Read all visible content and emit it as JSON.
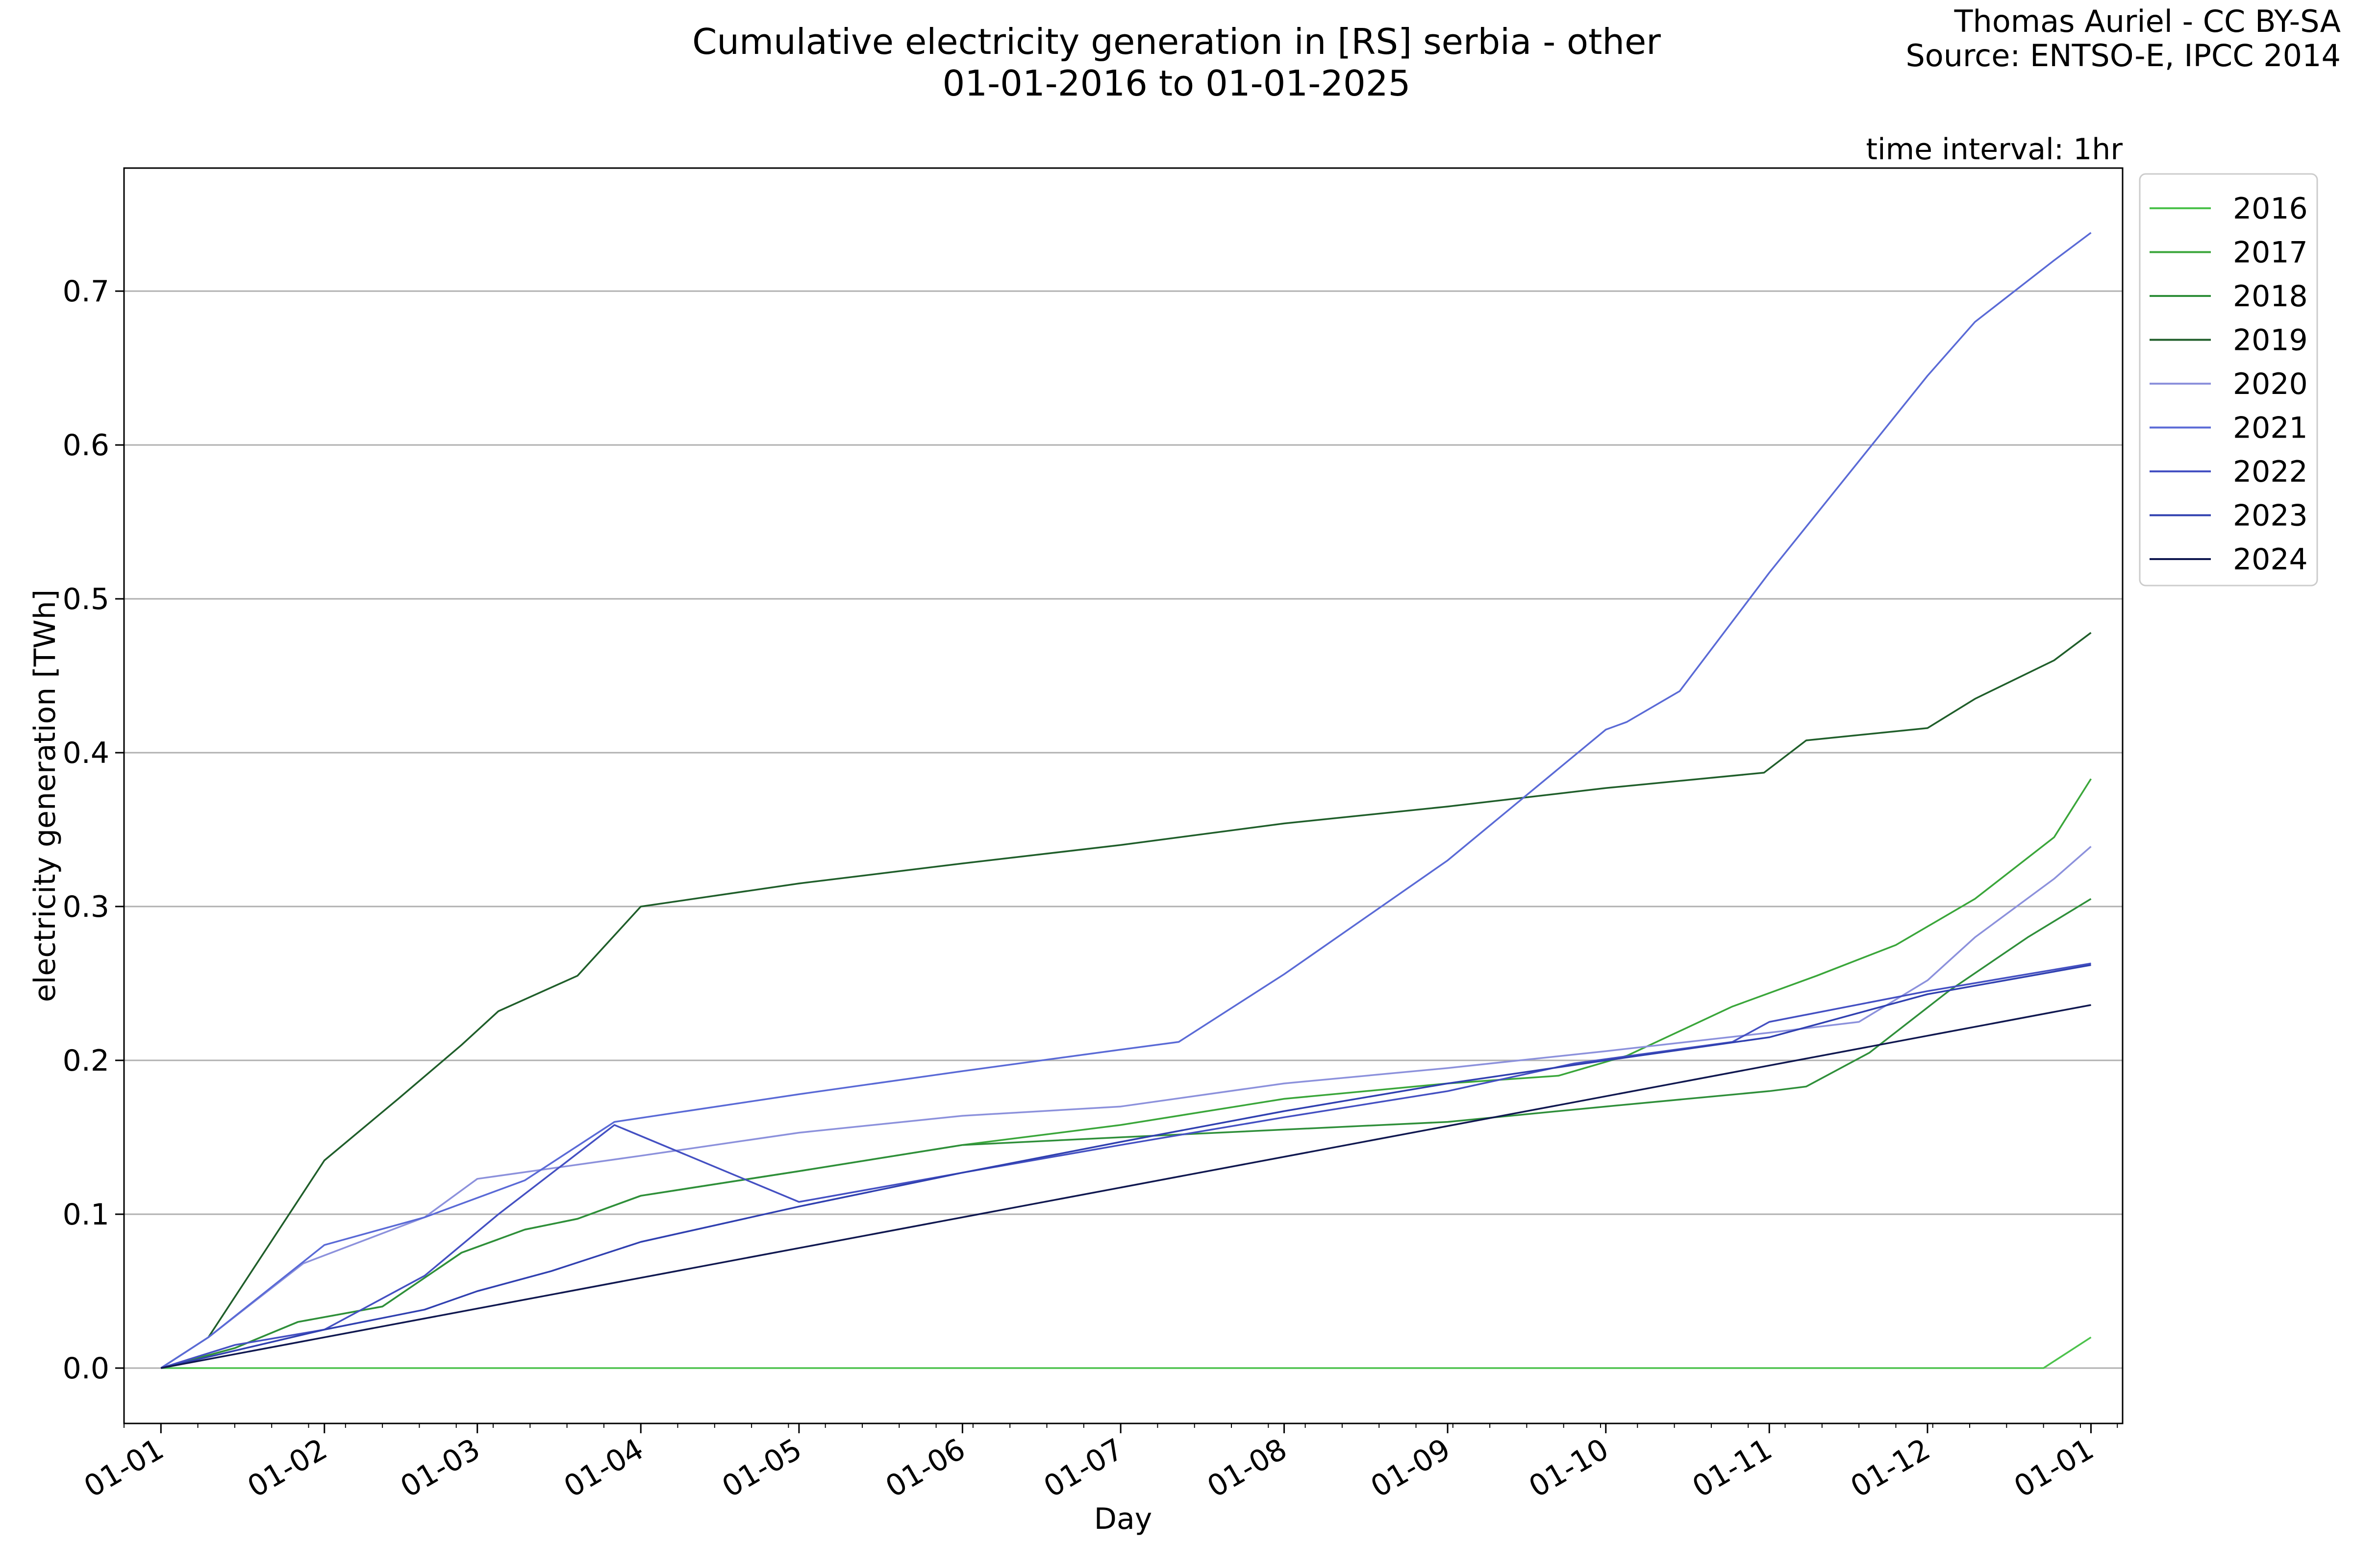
{
  "chart_data": {
    "type": "line",
    "title": "Cumulative electricity generation in [RS] serbia - other",
    "subtitle": "01-01-2016 to 01-01-2025",
    "credit": "Thomas Auriel - CC BY-SA",
    "source": "Source: ENTSO-E, IPCC 2014",
    "note": "time interval: 1hr",
    "xlabel": "Day",
    "ylabel": "electricity generation [TWh]",
    "xlim": [
      "12-25",
      "01-07"
    ],
    "ylim": [
      -0.036,
      0.78
    ],
    "x_ticks": [
      "01-01",
      "01-02",
      "01-03",
      "01-04",
      "01-05",
      "01-06",
      "01-07",
      "01-08",
      "01-09",
      "01-10",
      "01-11",
      "01-12",
      "01-01"
    ],
    "y_ticks": [
      "0.0",
      "0.1",
      "0.2",
      "0.3",
      "0.4",
      "0.5",
      "0.6",
      "0.7"
    ],
    "grid": "horizontal",
    "legend_position": "outside-top-right",
    "series": [
      {
        "name": "2016",
        "color": "#4cc24c",
        "points": [
          [
            "01-01",
            0
          ],
          [
            "12-23",
            0
          ],
          [
            "01-01",
            0.02
          ]
        ]
      },
      {
        "name": "2017",
        "color": "#3aa63a",
        "points": [
          [
            "01-01",
            0
          ],
          [
            "01-15",
            0.013
          ],
          [
            "01-27",
            0.03
          ],
          [
            "02-12",
            0.04
          ],
          [
            "02-27",
            0.075
          ],
          [
            "03-10",
            0.09
          ],
          [
            "03-20",
            0.097
          ],
          [
            "04-01",
            0.112
          ],
          [
            "05-01",
            0.128
          ],
          [
            "06-01",
            0.145
          ],
          [
            "07-01",
            0.158
          ],
          [
            "08-01",
            0.175
          ],
          [
            "09-01",
            0.185
          ],
          [
            "09-22",
            0.19
          ],
          [
            "10-05",
            0.203
          ],
          [
            "10-25",
            0.235
          ],
          [
            "11-10",
            0.255
          ],
          [
            "11-25",
            0.275
          ],
          [
            "12-10",
            0.305
          ],
          [
            "12-25",
            0.345
          ],
          [
            "01-01",
            0.383
          ]
        ]
      },
      {
        "name": "2018",
        "color": "#2f8f3a",
        "points": [
          [
            "01-01",
            0
          ],
          [
            "01-15",
            0.013
          ],
          [
            "01-27",
            0.03
          ],
          [
            "02-12",
            0.04
          ],
          [
            "02-27",
            0.075
          ],
          [
            "03-10",
            0.09
          ],
          [
            "03-20",
            0.097
          ],
          [
            "04-01",
            0.112
          ],
          [
            "05-01",
            0.128
          ],
          [
            "06-01",
            0.145
          ],
          [
            "07-01",
            0.15
          ],
          [
            "08-01",
            0.155
          ],
          [
            "09-01",
            0.16
          ],
          [
            "10-01",
            0.17
          ],
          [
            "11-01",
            0.18
          ],
          [
            "11-08",
            0.183
          ],
          [
            "11-20",
            0.205
          ],
          [
            "12-05",
            0.245
          ],
          [
            "12-20",
            0.28
          ],
          [
            "01-01",
            0.305
          ]
        ]
      },
      {
        "name": "2019",
        "color": "#1f5e2a",
        "points": [
          [
            "01-01",
            0
          ],
          [
            "01-10",
            0.02
          ],
          [
            "02-01",
            0.135
          ],
          [
            "02-15",
            0.175
          ],
          [
            "02-27",
            0.21
          ],
          [
            "03-05",
            0.232
          ],
          [
            "03-20",
            0.255
          ],
          [
            "04-01",
            0.3
          ],
          [
            "05-01",
            0.315
          ],
          [
            "06-01",
            0.328
          ],
          [
            "07-01",
            0.34
          ],
          [
            "08-01",
            0.354
          ],
          [
            "09-01",
            0.365
          ],
          [
            "10-01",
            0.377
          ],
          [
            "10-31",
            0.387
          ],
          [
            "11-08",
            0.408
          ],
          [
            "12-01",
            0.416
          ],
          [
            "12-10",
            0.435
          ],
          [
            "12-25",
            0.46
          ],
          [
            "01-01",
            0.478
          ]
        ]
      },
      {
        "name": "2020",
        "color": "#8c91dc",
        "points": [
          [
            "01-01",
            0
          ],
          [
            "01-10",
            0.02
          ],
          [
            "01-28",
            0.068
          ],
          [
            "02-20",
            0.098
          ],
          [
            "03-01",
            0.123
          ],
          [
            "04-01",
            0.138
          ],
          [
            "05-01",
            0.153
          ],
          [
            "06-01",
            0.164
          ],
          [
            "07-01",
            0.17
          ],
          [
            "08-01",
            0.185
          ],
          [
            "09-01",
            0.195
          ],
          [
            "10-01",
            0.206
          ],
          [
            "11-01",
            0.218
          ],
          [
            "11-18",
            0.225
          ],
          [
            "12-01",
            0.252
          ],
          [
            "12-10",
            0.28
          ],
          [
            "12-25",
            0.318
          ],
          [
            "01-01",
            0.339
          ]
        ]
      },
      {
        "name": "2021",
        "color": "#5a6ad6",
        "points": [
          [
            "01-01",
            0
          ],
          [
            "01-10",
            0.02
          ],
          [
            "02-01",
            0.08
          ],
          [
            "02-20",
            0.098
          ],
          [
            "03-10",
            0.122
          ],
          [
            "03-27",
            0.16
          ],
          [
            "05-01",
            0.178
          ],
          [
            "06-01",
            0.193
          ],
          [
            "07-01",
            0.207
          ],
          [
            "07-12",
            0.212
          ],
          [
            "08-01",
            0.256
          ],
          [
            "09-01",
            0.33
          ],
          [
            "10-01",
            0.415
          ],
          [
            "10-05",
            0.42
          ],
          [
            "10-15",
            0.44
          ],
          [
            "11-01",
            0.517
          ],
          [
            "12-01",
            0.645
          ],
          [
            "12-10",
            0.68
          ],
          [
            "12-25",
            0.72
          ],
          [
            "01-01",
            0.738
          ]
        ]
      },
      {
        "name": "2022",
        "color": "#4450c2",
        "points": [
          [
            "01-01",
            0
          ],
          [
            "01-15",
            0.015
          ],
          [
            "02-01",
            0.025
          ],
          [
            "02-20",
            0.06
          ],
          [
            "03-05",
            0.1
          ],
          [
            "03-27",
            0.158
          ],
          [
            "05-01",
            0.108
          ],
          [
            "06-01",
            0.127
          ],
          [
            "07-01",
            0.145
          ],
          [
            "08-01",
            0.163
          ],
          [
            "09-01",
            0.18
          ],
          [
            "09-25",
            0.198
          ],
          [
            "10-25",
            0.212
          ],
          [
            "11-01",
            0.225
          ],
          [
            "12-01",
            0.245
          ],
          [
            "01-01",
            0.263
          ]
        ]
      },
      {
        "name": "2023",
        "color": "#3040b0",
        "points": [
          [
            "01-01",
            0
          ],
          [
            "02-01",
            0.025
          ],
          [
            "02-20",
            0.038
          ],
          [
            "03-01",
            0.05
          ],
          [
            "03-15",
            0.063
          ],
          [
            "04-01",
            0.082
          ],
          [
            "05-01",
            0.105
          ],
          [
            "06-01",
            0.127
          ],
          [
            "07-01",
            0.147
          ],
          [
            "08-01",
            0.167
          ],
          [
            "09-01",
            0.185
          ],
          [
            "10-01",
            0.2
          ],
          [
            "11-01",
            0.215
          ],
          [
            "12-01",
            0.243
          ],
          [
            "01-01",
            0.262
          ]
        ]
      },
      {
        "name": "2024",
        "color": "#101850",
        "points": [
          [
            "01-01",
            0
          ],
          [
            "01-01",
            0.236
          ]
        ]
      }
    ]
  }
}
